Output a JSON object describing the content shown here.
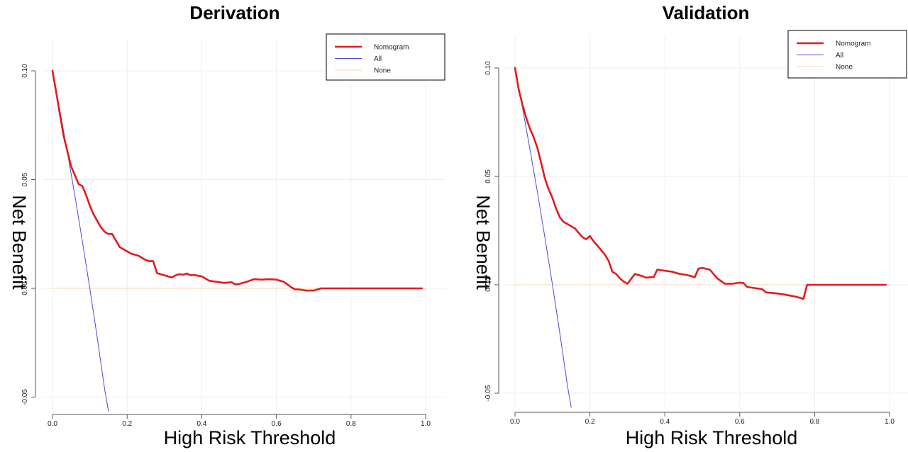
{
  "chart_data": [
    {
      "type": "line",
      "title": "Derivation",
      "xlabel": "High Risk Threshold",
      "ylabel": "Net Benefit",
      "xlim": [
        0.0,
        1.0
      ],
      "ylim": [
        -0.055,
        0.1
      ],
      "x_ticks": [
        "0.0",
        "0.2",
        "0.4",
        "0.6",
        "0.8",
        "1.0"
      ],
      "y_ticks": [
        "-0.05",
        "0.00",
        "0.05",
        "0.10"
      ],
      "grid": true,
      "legend_position": "top-right",
      "series": [
        {
          "name": "Nomogram",
          "color": "#e41a1c",
          "x": [
            0.0,
            0.01,
            0.02,
            0.03,
            0.04,
            0.05,
            0.06,
            0.07,
            0.08,
            0.09,
            0.1,
            0.11,
            0.12,
            0.13,
            0.14,
            0.15,
            0.16,
            0.17,
            0.18,
            0.19,
            0.2,
            0.21,
            0.22,
            0.23,
            0.24,
            0.25,
            0.26,
            0.27,
            0.28,
            0.3,
            0.32,
            0.33,
            0.34,
            0.35,
            0.36,
            0.37,
            0.38,
            0.39,
            0.4,
            0.42,
            0.44,
            0.46,
            0.48,
            0.49,
            0.5,
            0.52,
            0.54,
            0.56,
            0.58,
            0.6,
            0.62,
            0.64,
            0.65,
            0.66,
            0.68,
            0.7,
            0.72,
            0.75,
            0.8,
            0.85,
            0.9,
            0.95,
            0.99
          ],
          "y": [
            0.1,
            0.09,
            0.08,
            0.07,
            0.063,
            0.056,
            0.052,
            0.048,
            0.047,
            0.043,
            0.038,
            0.034,
            0.031,
            0.028,
            0.026,
            0.025,
            0.025,
            0.022,
            0.019,
            0.018,
            0.017,
            0.016,
            0.0155,
            0.015,
            0.014,
            0.013,
            0.0125,
            0.0125,
            0.007,
            0.006,
            0.005,
            0.006,
            0.0065,
            0.0063,
            0.0068,
            0.006,
            0.0062,
            0.0058,
            0.0055,
            0.0035,
            0.003,
            0.0025,
            0.0028,
            0.0018,
            0.002,
            0.003,
            0.0042,
            0.004,
            0.0042,
            0.004,
            0.003,
            0.0005,
            -0.0005,
            -0.0005,
            -0.001,
            -0.001,
            0.0,
            0.0,
            0.0,
            0.0,
            0.0,
            0.0,
            0.0
          ]
        },
        {
          "name": "All",
          "color": "#4a4adb",
          "x": [
            0.0,
            0.02,
            0.04,
            0.06,
            0.08,
            0.1,
            0.12,
            0.14,
            0.15
          ],
          "y": [
            0.1,
            0.0816,
            0.0625,
            0.0426,
            0.0217,
            0.0,
            -0.0227,
            -0.0465,
            -0.0565
          ]
        },
        {
          "name": "None",
          "color": "#f3d9b0",
          "x": [
            0.0,
            1.0
          ],
          "y": [
            0.0,
            0.0
          ]
        }
      ]
    },
    {
      "type": "line",
      "title": "Validation",
      "xlabel": "High Risk Threshold",
      "ylabel": "Net Benefit",
      "xlim": [
        0.0,
        1.0
      ],
      "ylim": [
        -0.055,
        0.1
      ],
      "x_ticks": [
        "0.0",
        "0.2",
        "0.4",
        "0.6",
        "0.8",
        "1.0"
      ],
      "y_ticks": [
        "-0.05",
        "0.00",
        "0.05",
        "0.10"
      ],
      "grid": true,
      "legend_position": "top-right",
      "series": [
        {
          "name": "Nomogram",
          "color": "#e41a1c",
          "x": [
            0.0,
            0.01,
            0.02,
            0.03,
            0.04,
            0.05,
            0.06,
            0.07,
            0.08,
            0.09,
            0.1,
            0.11,
            0.12,
            0.13,
            0.14,
            0.15,
            0.16,
            0.17,
            0.18,
            0.19,
            0.2,
            0.21,
            0.22,
            0.23,
            0.24,
            0.25,
            0.26,
            0.27,
            0.28,
            0.29,
            0.3,
            0.32,
            0.34,
            0.35,
            0.36,
            0.37,
            0.38,
            0.4,
            0.42,
            0.44,
            0.46,
            0.48,
            0.49,
            0.5,
            0.52,
            0.54,
            0.56,
            0.58,
            0.6,
            0.61,
            0.62,
            0.64,
            0.66,
            0.67,
            0.7,
            0.72,
            0.75,
            0.77,
            0.78,
            0.8,
            0.85,
            0.9,
            0.95,
            0.99
          ],
          "y": [
            0.1,
            0.09,
            0.083,
            0.077,
            0.072,
            0.068,
            0.063,
            0.056,
            0.049,
            0.044,
            0.04,
            0.035,
            0.031,
            0.029,
            0.028,
            0.027,
            0.026,
            0.024,
            0.022,
            0.021,
            0.0225,
            0.02,
            0.018,
            0.016,
            0.014,
            0.011,
            0.006,
            0.005,
            0.003,
            0.0015,
            0.0005,
            0.005,
            0.004,
            0.0033,
            0.0035,
            0.0035,
            0.007,
            0.0065,
            0.006,
            0.005,
            0.0045,
            0.0035,
            0.0075,
            0.0078,
            0.007,
            0.003,
            0.0005,
            0.0005,
            0.001,
            0.0008,
            -0.001,
            -0.0015,
            -0.002,
            -0.0035,
            -0.004,
            -0.0045,
            -0.0055,
            -0.0065,
            0.0,
            0.0,
            0.0,
            0.0,
            0.0,
            0.0
          ]
        },
        {
          "name": "All",
          "color": "#4a4adb",
          "x": [
            0.0,
            0.02,
            0.04,
            0.06,
            0.08,
            0.1,
            0.12,
            0.14,
            0.15
          ],
          "y": [
            0.1,
            0.0816,
            0.0625,
            0.0426,
            0.0217,
            0.0,
            -0.0227,
            -0.0465,
            -0.0565
          ]
        },
        {
          "name": "None",
          "color": "#f3d9b0",
          "x": [
            0.0,
            1.0
          ],
          "y": [
            0.0,
            0.0
          ]
        }
      ]
    }
  ]
}
